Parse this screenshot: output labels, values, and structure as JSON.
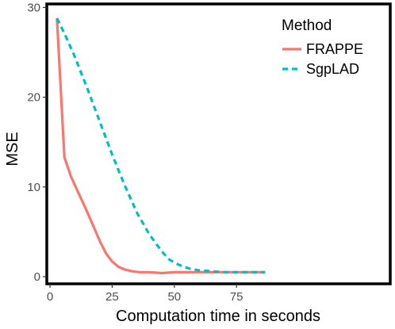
{
  "chart_data": {
    "type": "line",
    "title": "",
    "xlabel": "Computation time in seconds",
    "ylabel": "MSE",
    "xlim": [
      0,
      90
    ],
    "ylim": [
      -0.8,
      30
    ],
    "xticks": [
      0,
      25,
      50,
      75
    ],
    "yticks": [
      0,
      10,
      20,
      30
    ],
    "grid": false,
    "legend": {
      "title": "Method",
      "position": "top-right"
    },
    "series": [
      {
        "name": "FRAPPE",
        "color": "#f8766d",
        "line_style": "solid",
        "x": [
          2.8,
          5.8,
          8.5,
          11.5,
          14.5,
          17.5,
          20,
          22.5,
          25,
          27.5,
          30,
          33,
          36,
          40,
          45,
          50,
          55,
          60,
          65,
          70,
          75,
          80,
          85,
          86.5
        ],
        "y": [
          28.8,
          13.3,
          11.1,
          9.3,
          7.5,
          5.6,
          4,
          2.6,
          1.7,
          1.1,
          0.8,
          0.6,
          0.5,
          0.5,
          0.4,
          0.5,
          0.5,
          0.5,
          0.5,
          0.5,
          0.5,
          0.5,
          0.5,
          0.5
        ]
      },
      {
        "name": "SgpLAD",
        "color": "#00bfc4",
        "line_style": "dashed",
        "x": [
          2.8,
          6,
          10,
          15,
          20,
          25,
          30,
          35,
          40,
          45,
          48,
          52,
          56,
          60,
          65,
          70,
          75,
          80,
          86.5
        ],
        "y": [
          28.8,
          27,
          24.5,
          21,
          17.3,
          13.6,
          10.2,
          7.1,
          4.7,
          2.8,
          1.9,
          1.3,
          0.9,
          0.7,
          0.6,
          0.5,
          0.5,
          0.5,
          0.5
        ]
      }
    ]
  }
}
